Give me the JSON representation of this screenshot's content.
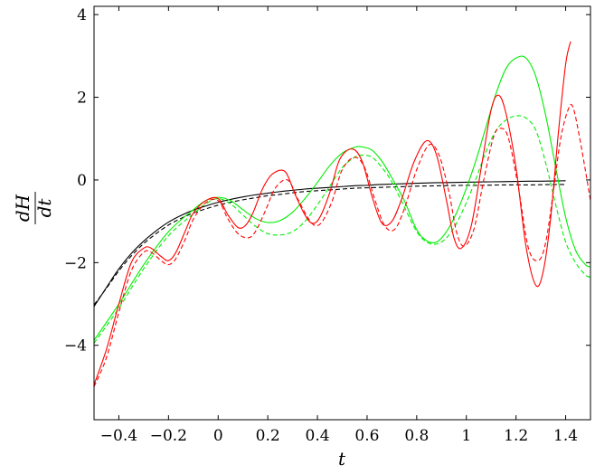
{
  "chart_data": {
    "type": "line",
    "title": "",
    "xlabel": "t",
    "ylabel": {
      "numerator": "dH",
      "denominator": "dt"
    },
    "xlim": [
      -0.5,
      1.5
    ],
    "ylim": [
      -5.8,
      4.2
    ],
    "xticks": [
      -0.4,
      -0.2,
      0,
      0.2,
      0.4,
      0.6,
      0.8,
      1,
      1.2,
      1.4
    ],
    "xtick_labels": [
      "−0.4",
      "−0.2",
      "0",
      "0.2",
      "0.4",
      "0.6",
      "0.8",
      "1",
      "1.2",
      "1.4"
    ],
    "yticks": [
      -4,
      -2,
      0,
      2,
      4
    ],
    "ytick_labels": [
      "−4",
      "−2",
      "0",
      "2",
      "4"
    ],
    "grid": false,
    "legend": "none",
    "series": [
      {
        "color": "#000000",
        "dash": false,
        "x": [
          -0.5,
          -0.45,
          -0.4,
          -0.35,
          -0.3,
          -0.25,
          -0.2,
          -0.15,
          -0.1,
          -0.05,
          0,
          0.05,
          0.1,
          0.15,
          0.2,
          0.25,
          0.3,
          0.35,
          0.4,
          0.45,
          0.5,
          0.55,
          0.6,
          0.65,
          0.7,
          0.75,
          0.8,
          0.85,
          0.9,
          0.95,
          1.0,
          1.05,
          1.1,
          1.15,
          1.2,
          1.25,
          1.3,
          1.35,
          1.4
        ],
        "y": [
          -3.06,
          -2.6,
          -2.15,
          -1.78,
          -1.48,
          -1.23,
          -1.02,
          -0.86,
          -0.73,
          -0.63,
          -0.54,
          -0.47,
          -0.41,
          -0.36,
          -0.32,
          -0.28,
          -0.25,
          -0.22,
          -0.2,
          -0.18,
          -0.16,
          -0.14,
          -0.13,
          -0.11,
          -0.1,
          -0.09,
          -0.08,
          -0.07,
          -0.065,
          -0.06,
          -0.055,
          -0.05,
          -0.045,
          -0.04,
          -0.035,
          -0.03,
          -0.03,
          -0.025,
          -0.02
        ]
      },
      {
        "color": "#000000",
        "dash": true,
        "x": [
          -0.5,
          -0.45,
          -0.4,
          -0.35,
          -0.3,
          -0.25,
          -0.2,
          -0.15,
          -0.1,
          -0.05,
          0,
          0.05,
          0.1,
          0.15,
          0.2,
          0.25,
          0.3,
          0.35,
          0.4,
          0.45,
          0.5,
          0.55,
          0.6,
          0.65,
          0.7,
          0.75,
          0.8,
          0.85,
          0.9,
          0.95,
          1.0,
          1.05,
          1.1,
          1.15,
          1.2,
          1.25,
          1.3,
          1.35,
          1.4
        ],
        "y": [
          -3.02,
          -2.62,
          -2.2,
          -1.84,
          -1.54,
          -1.3,
          -1.09,
          -0.93,
          -0.8,
          -0.7,
          -0.61,
          -0.54,
          -0.48,
          -0.43,
          -0.38,
          -0.35,
          -0.31,
          -0.28,
          -0.26,
          -0.24,
          -0.22,
          -0.2,
          -0.19,
          -0.18,
          -0.17,
          -0.16,
          -0.15,
          -0.145,
          -0.14,
          -0.135,
          -0.13,
          -0.13,
          -0.125,
          -0.12,
          -0.12,
          -0.12,
          -0.115,
          -0.11,
          -0.11
        ]
      },
      {
        "color": "#00ee00",
        "dash": false,
        "x": [
          -0.5,
          -0.4,
          -0.3,
          -0.2,
          -0.1,
          -0.05,
          0,
          0.05,
          0.1,
          0.15,
          0.2,
          0.25,
          0.3,
          0.35,
          0.4,
          0.45,
          0.5,
          0.55,
          0.58,
          0.62,
          0.66,
          0.7,
          0.75,
          0.8,
          0.84,
          0.88,
          0.92,
          0.96,
          1.0,
          1.04,
          1.08,
          1.12,
          1.16,
          1.2,
          1.24,
          1.28,
          1.32,
          1.36,
          1.4,
          1.44,
          1.48,
          1.5
        ],
        "y": [
          -3.88,
          -3.0,
          -2.05,
          -1.25,
          -0.72,
          -0.5,
          -0.42,
          -0.5,
          -0.72,
          -0.93,
          -1.03,
          -0.98,
          -0.78,
          -0.45,
          -0.06,
          0.35,
          0.65,
          0.79,
          0.8,
          0.72,
          0.45,
          0.05,
          -0.5,
          -1.2,
          -1.47,
          -1.5,
          -1.25,
          -0.8,
          -0.2,
          0.5,
          1.3,
          2.1,
          2.7,
          2.95,
          2.95,
          2.5,
          1.55,
          0.3,
          -0.9,
          -1.7,
          -2.05,
          -2.1
        ]
      },
      {
        "color": "#00ee00",
        "dash": true,
        "x": [
          -0.5,
          -0.4,
          -0.3,
          -0.2,
          -0.1,
          -0.05,
          0,
          0.05,
          0.1,
          0.15,
          0.2,
          0.25,
          0.3,
          0.35,
          0.4,
          0.45,
          0.5,
          0.55,
          0.58,
          0.62,
          0.66,
          0.7,
          0.75,
          0.8,
          0.84,
          0.88,
          0.92,
          0.96,
          1.0,
          1.04,
          1.08,
          1.12,
          1.16,
          1.2,
          1.24,
          1.28,
          1.32,
          1.36,
          1.4,
          1.44,
          1.48,
          1.5
        ],
        "y": [
          -3.95,
          -3.1,
          -2.15,
          -1.35,
          -0.82,
          -0.58,
          -0.45,
          -0.58,
          -0.85,
          -1.12,
          -1.3,
          -1.33,
          -1.25,
          -1.0,
          -0.6,
          -0.15,
          0.3,
          0.55,
          0.6,
          0.55,
          0.3,
          -0.05,
          -0.65,
          -1.25,
          -1.5,
          -1.55,
          -1.4,
          -1.05,
          -0.55,
          0.05,
          0.7,
          1.2,
          1.45,
          1.55,
          1.5,
          1.2,
          0.4,
          -0.6,
          -1.5,
          -2.0,
          -2.3,
          -2.35
        ]
      },
      {
        "color": "#ff0000",
        "dash": false,
        "x": [
          -0.5,
          -0.45,
          -0.4,
          -0.35,
          -0.3,
          -0.27,
          -0.23,
          -0.2,
          -0.17,
          -0.13,
          -0.1,
          -0.05,
          0,
          0.04,
          0.08,
          0.11,
          0.14,
          0.18,
          0.22,
          0.27,
          0.31,
          0.35,
          0.38,
          0.41,
          0.45,
          0.49,
          0.54,
          0.58,
          0.62,
          0.66,
          0.7,
          0.74,
          0.79,
          0.84,
          0.88,
          0.92,
          0.95,
          0.98,
          1.02,
          1.06,
          1.1,
          1.13,
          1.16,
          1.2,
          1.24,
          1.28,
          1.31,
          1.34,
          1.37,
          1.4,
          1.42
        ],
        "y": [
          -4.95,
          -4.1,
          -3.0,
          -2.0,
          -1.65,
          -1.65,
          -1.85,
          -1.95,
          -1.75,
          -1.2,
          -0.8,
          -0.5,
          -0.45,
          -0.85,
          -1.15,
          -1.1,
          -0.8,
          -0.2,
          0.15,
          0.2,
          -0.35,
          -0.85,
          -1.05,
          -0.9,
          -0.3,
          0.5,
          0.75,
          0.45,
          -0.4,
          -1.05,
          -1.0,
          -0.45,
          0.45,
          0.95,
          0.6,
          -0.5,
          -1.4,
          -1.65,
          -1.1,
          0.3,
          1.7,
          2.05,
          1.6,
          0.3,
          -1.6,
          -2.55,
          -2.2,
          -0.9,
          1.1,
          2.8,
          3.35
        ]
      },
      {
        "color": "#ff0000",
        "dash": true,
        "x": [
          -0.5,
          -0.45,
          -0.4,
          -0.35,
          -0.3,
          -0.27,
          -0.23,
          -0.2,
          -0.17,
          -0.13,
          -0.1,
          -0.05,
          0,
          0.04,
          0.08,
          0.12,
          0.15,
          0.19,
          0.23,
          0.28,
          0.32,
          0.36,
          0.39,
          0.42,
          0.46,
          0.5,
          0.55,
          0.59,
          0.63,
          0.67,
          0.71,
          0.75,
          0.8,
          0.85,
          0.89,
          0.93,
          0.96,
          0.99,
          1.03,
          1.07,
          1.11,
          1.14,
          1.17,
          1.21,
          1.25,
          1.29,
          1.32,
          1.35,
          1.38,
          1.41,
          1.43,
          1.46,
          1.5
        ],
        "y": [
          -5.0,
          -4.3,
          -3.2,
          -2.2,
          -1.75,
          -1.75,
          -1.95,
          -2.05,
          -1.9,
          -1.4,
          -0.95,
          -0.55,
          -0.5,
          -0.95,
          -1.3,
          -1.4,
          -1.25,
          -0.75,
          -0.2,
          0.0,
          -0.45,
          -0.9,
          -1.1,
          -1.0,
          -0.5,
          0.25,
          0.55,
          0.3,
          -0.45,
          -1.1,
          -1.2,
          -0.7,
          0.25,
          0.85,
          0.6,
          -0.3,
          -1.25,
          -1.6,
          -1.2,
          0.0,
          1.05,
          1.25,
          1.0,
          -0.2,
          -1.65,
          -1.95,
          -1.5,
          -0.3,
          1.0,
          1.7,
          1.75,
          0.9,
          -0.5
        ]
      }
    ]
  }
}
